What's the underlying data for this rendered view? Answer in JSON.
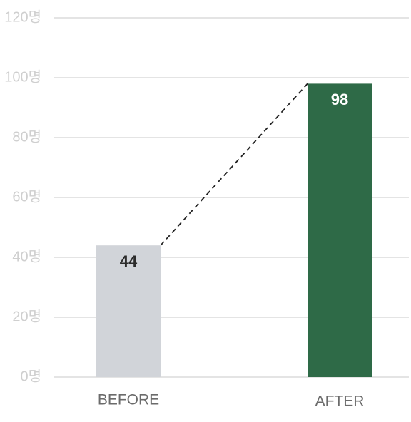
{
  "chart_data": {
    "type": "bar",
    "categories": [
      "BEFORE",
      "AFTER"
    ],
    "values": [
      44,
      98
    ],
    "colors": [
      "#d1d4d9",
      "#2e6a47"
    ],
    "value_label_colors": [
      "#2b2b2b",
      "#ffffff"
    ],
    "ylim": [
      0,
      120
    ],
    "yticks": [
      {
        "value": 0,
        "label": "0명"
      },
      {
        "value": 20,
        "label": "20명"
      },
      {
        "value": 40,
        "label": "40명"
      },
      {
        "value": 60,
        "label": "60명"
      },
      {
        "value": 80,
        "label": "80명"
      },
      {
        "value": 100,
        "label": "100명"
      },
      {
        "value": 120,
        "label": "120명"
      }
    ],
    "grid": true,
    "connector": "dashed"
  }
}
